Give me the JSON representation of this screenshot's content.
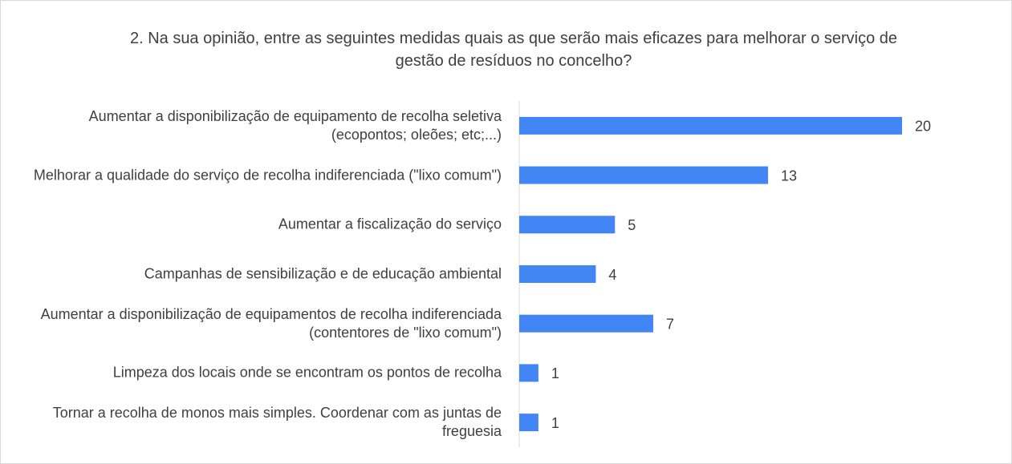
{
  "chart_data": {
    "type": "barh",
    "title": "2. Na sua opinião, entre as seguintes medidas quais as que serão mais eficazes para melhorar o serviço de gestão de resíduos no concelho?",
    "categories": [
      "Aumentar a disponibilização de equipamento de recolha seletiva (ecopontos; oleões; etc;...)",
      "Melhorar a qualidade do serviço de recolha indiferenciada (\"lixo comum\")",
      "Aumentar a fiscalização do serviço",
      "Campanhas de sensibilização e de educação ambiental",
      "Aumentar a disponibilização de equipamentos de recolha indiferenciada (contentores de \"lixo comum\")",
      "Limpeza dos locais onde se encontram os pontos de recolha",
      "Tornar a recolha de monos mais simples. Coordenar com as juntas de freguesia"
    ],
    "values": [
      20,
      13,
      5,
      4,
      7,
      1,
      1
    ],
    "color": "#4285f4"
  }
}
